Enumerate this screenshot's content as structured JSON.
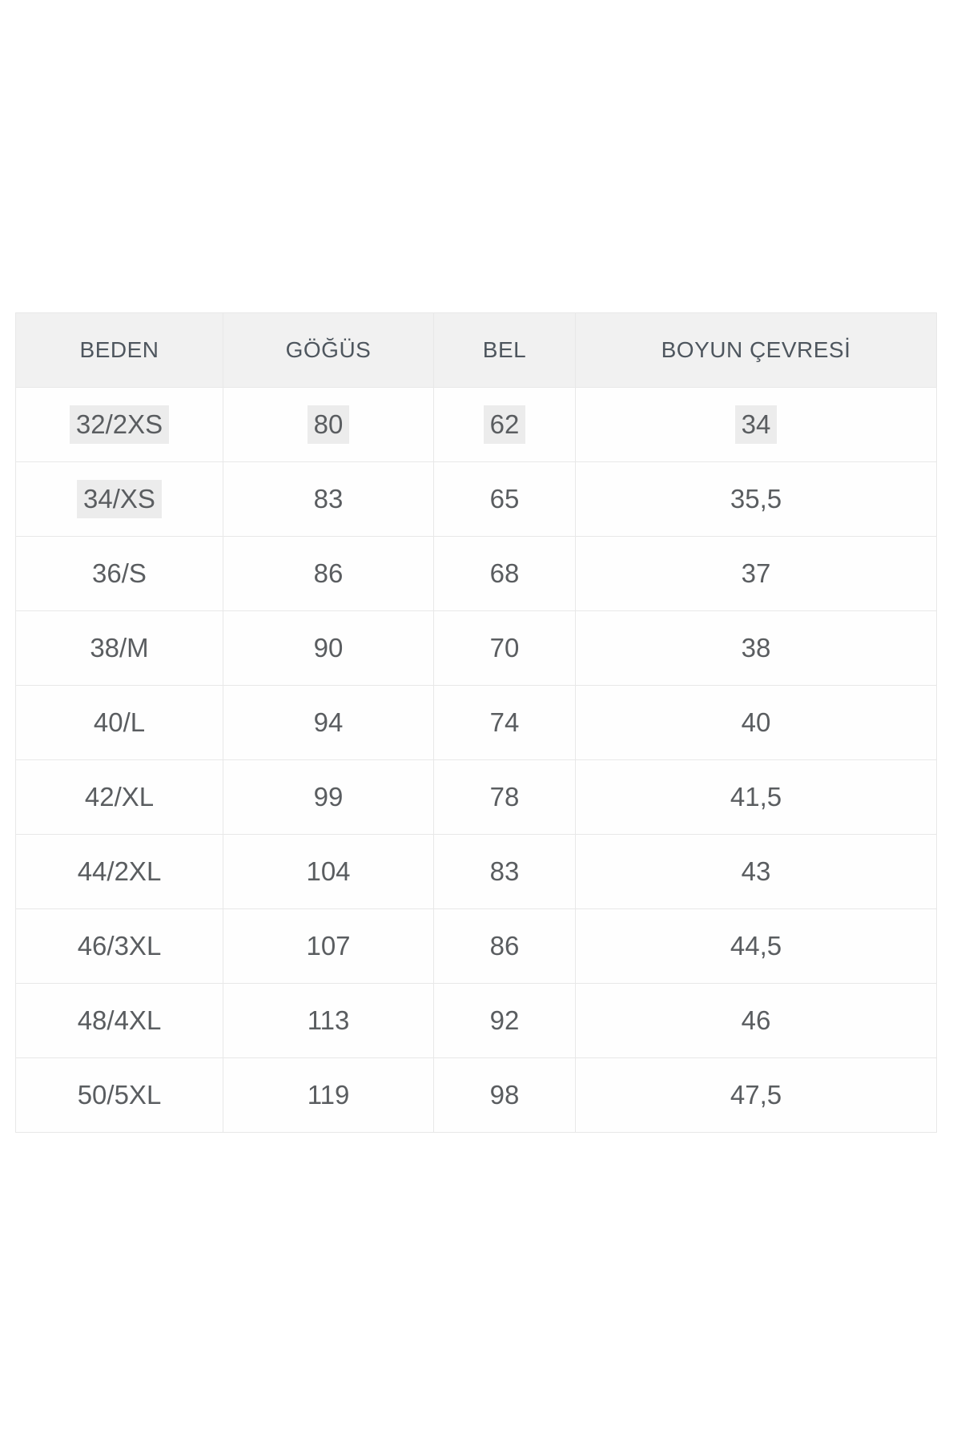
{
  "page": {
    "background": "#ffffff"
  },
  "colors": {
    "header_bg": "#f1f1f1",
    "header_text": "#4e565e",
    "cell_text": "#5a5d60",
    "border": "#e8e8e8",
    "highlight_bg": "#ececec"
  },
  "table": {
    "headers": [
      "BEDEN",
      "GÖĞÜS",
      "BEL",
      "BOYUN ÇEVRESİ"
    ],
    "rows": [
      {
        "cells": [
          "32/2XS",
          "80",
          "62",
          "34"
        ],
        "highlight": [
          true,
          true,
          true,
          true
        ]
      },
      {
        "cells": [
          "34/XS",
          "83",
          "65",
          "35,5"
        ],
        "highlight": [
          true,
          false,
          false,
          false
        ]
      },
      {
        "cells": [
          "36/S",
          "86",
          "68",
          "37"
        ],
        "highlight": [
          false,
          false,
          false,
          false
        ]
      },
      {
        "cells": [
          "38/M",
          "90",
          "70",
          "38"
        ],
        "highlight": [
          false,
          false,
          false,
          false
        ]
      },
      {
        "cells": [
          "40/L",
          "94",
          "74",
          "40"
        ],
        "highlight": [
          false,
          false,
          false,
          false
        ]
      },
      {
        "cells": [
          "42/XL",
          "99",
          "78",
          "41,5"
        ],
        "highlight": [
          false,
          false,
          false,
          false
        ]
      },
      {
        "cells": [
          "44/2XL",
          "104",
          "83",
          "43"
        ],
        "highlight": [
          false,
          false,
          false,
          false
        ]
      },
      {
        "cells": [
          "46/3XL",
          "107",
          "86",
          "44,5"
        ],
        "highlight": [
          false,
          false,
          false,
          false
        ]
      },
      {
        "cells": [
          "48/4XL",
          "113",
          "92",
          "46"
        ],
        "highlight": [
          false,
          false,
          false,
          false
        ]
      },
      {
        "cells": [
          "50/5XL",
          "119",
          "98",
          "47,5"
        ],
        "highlight": [
          false,
          false,
          false,
          false
        ]
      }
    ]
  },
  "chart_data": {
    "type": "table",
    "title": "",
    "columns": [
      "BEDEN",
      "GÖĞÜS",
      "BEL",
      "BOYUN ÇEVRESİ"
    ],
    "rows": [
      [
        "32/2XS",
        80,
        62,
        34
      ],
      [
        "34/XS",
        83,
        65,
        35.5
      ],
      [
        "36/S",
        86,
        68,
        37
      ],
      [
        "38/M",
        90,
        70,
        38
      ],
      [
        "40/L",
        94,
        74,
        40
      ],
      [
        "42/XL",
        99,
        78,
        41.5
      ],
      [
        "44/2XL",
        104,
        83,
        43
      ],
      [
        "46/3XL",
        107,
        86,
        44.5
      ],
      [
        "48/4XL",
        113,
        92,
        46
      ],
      [
        "50/5XL",
        119,
        98,
        47.5
      ]
    ]
  }
}
